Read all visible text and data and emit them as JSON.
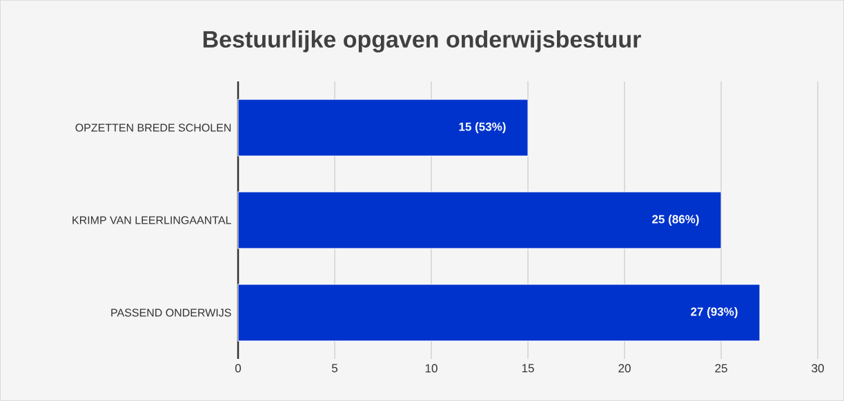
{
  "chart_data": {
    "type": "bar",
    "orientation": "horizontal",
    "title": "Bestuurlijke opgaven onderwijsbestuur",
    "categories": [
      "OPZETTEN BREDE SCHOLEN",
      "KRIMP VAN LEERLINGAANTAL",
      "PASSEND ONDERWIJS"
    ],
    "values": [
      15,
      25,
      27
    ],
    "value_labels": [
      "15 (53%)",
      "25 (86%)",
      "27 (93%)"
    ],
    "color": "#0033cc",
    "xlim": [
      0,
      30
    ],
    "xticks": [
      0,
      5,
      10,
      15,
      20,
      25,
      30
    ],
    "grid": "x"
  }
}
